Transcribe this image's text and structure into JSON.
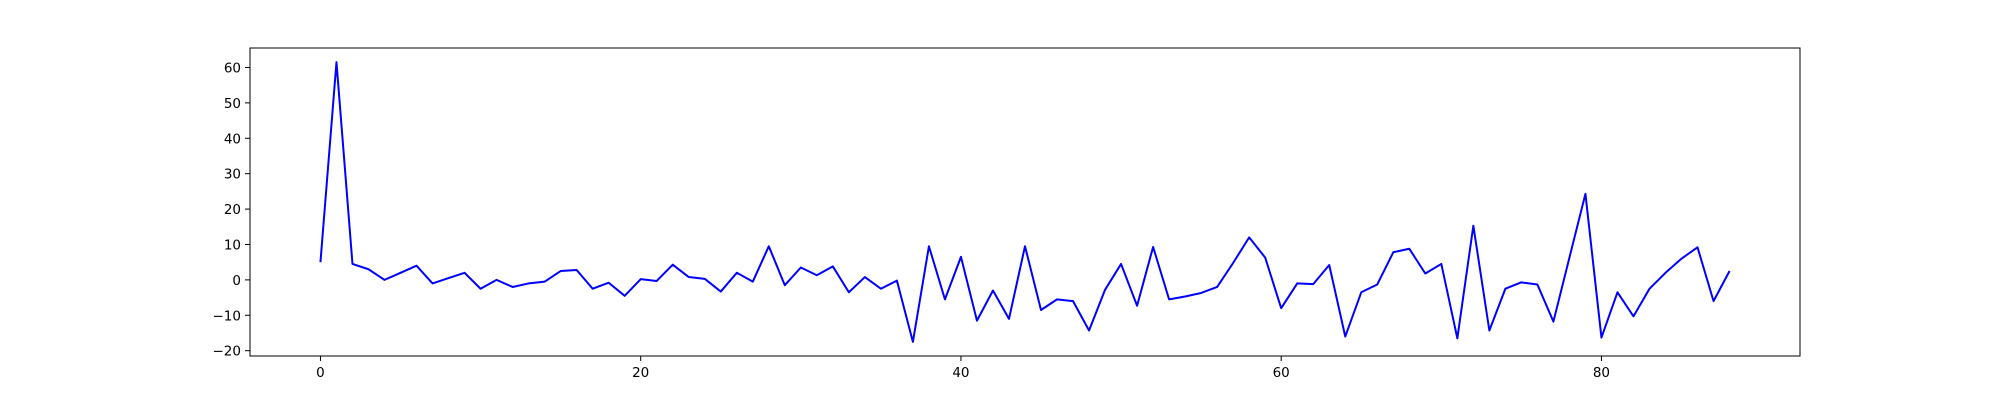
{
  "chart_data": {
    "type": "line",
    "title": "",
    "xlabel": "",
    "ylabel": "",
    "xlim": [
      -4.4,
      92.4
    ],
    "ylim": [
      -21.5,
      65.5
    ],
    "x_ticks": [
      0,
      20,
      40,
      60,
      80
    ],
    "y_ticks": [
      -20,
      -10,
      0,
      10,
      20,
      30,
      40,
      50,
      60
    ],
    "grid": false,
    "legend": "none",
    "series": [
      {
        "color": "#0000ff",
        "x": [
          0,
          1,
          2,
          3,
          4,
          5,
          6,
          7,
          8,
          9,
          10,
          11,
          12,
          13,
          14,
          15,
          16,
          17,
          18,
          19,
          20,
          21,
          22,
          23,
          24,
          25,
          26,
          27,
          28,
          29,
          30,
          31,
          32,
          33,
          34,
          35,
          36,
          37,
          38,
          39,
          40,
          41,
          42,
          43,
          44,
          45,
          46,
          47,
          48,
          49,
          50,
          51,
          52,
          53,
          54,
          55,
          56,
          57,
          58,
          59,
          60,
          61,
          62,
          63,
          64,
          65,
          66,
          67,
          68,
          69,
          70,
          71,
          72,
          73,
          74,
          75,
          76,
          77,
          78,
          79,
          80,
          81,
          82,
          83,
          84,
          85,
          86,
          87,
          88
        ],
        "y": [
          5,
          61.5,
          4.5,
          3,
          0,
          2,
          4,
          -1,
          0.5,
          2,
          -2.5,
          0,
          -2,
          -1,
          -0.5,
          2.5,
          2.8,
          -2.5,
          -0.8,
          -4.5,
          0.2,
          -0.3,
          4.3,
          0.8,
          0.3,
          -3.3,
          2,
          -0.5,
          9.5,
          -1.5,
          3.5,
          1.3,
          3.8,
          -3.5,
          0.8,
          -2.5,
          -0.2,
          -17.5,
          9.5,
          -5.5,
          6.5,
          -11.5,
          -3,
          -11,
          9.5,
          -8.5,
          -5.5,
          -6,
          -14.3,
          -2.8,
          4.5,
          -7.3,
          9.3,
          -5.5,
          -4.7,
          -3.7,
          -2,
          4.8,
          12,
          6.3,
          -8,
          -1,
          -1.2,
          4.2,
          -16,
          -3.5,
          -1.3,
          7.8,
          8.8,
          1.8,
          4.5,
          -16.5,
          15.3,
          -14.3,
          -2.5,
          -0.7,
          -1.3,
          -11.8,
          6.3,
          24.3,
          -16.3,
          -3.5,
          -10.3,
          -2.5,
          2,
          6,
          9.2,
          -6,
          2.5
        ]
      }
    ]
  }
}
